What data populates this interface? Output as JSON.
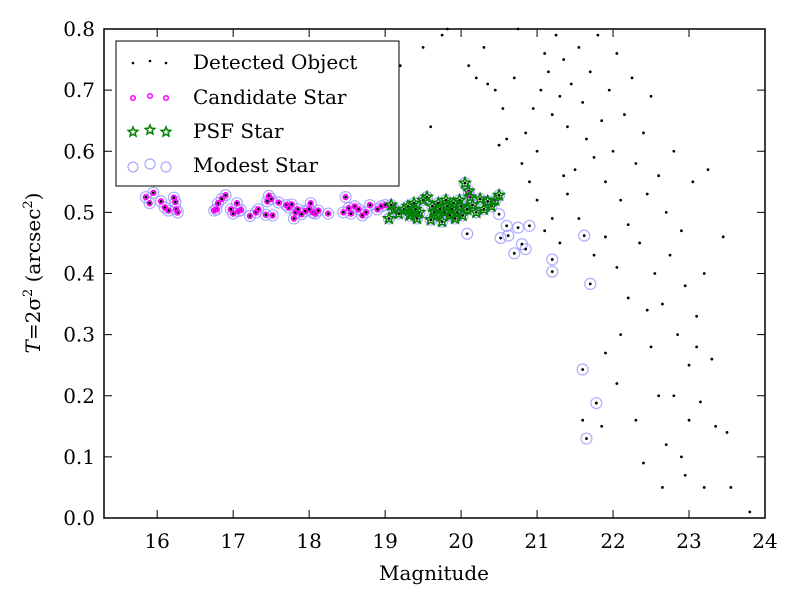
{
  "chart_data": {
    "type": "scatter",
    "title": "",
    "xlabel": "Magnitude",
    "ylabel_parts": {
      "T": "T",
      "eq": "=2σ",
      "sup": "2",
      "unit_open": " (arcsec",
      "unit_sup": "2",
      "unit_close": ")"
    },
    "xlim": [
      15.3,
      24.0
    ],
    "ylim": [
      0.0,
      0.8
    ],
    "xticks": [
      "16",
      "17",
      "18",
      "19",
      "20",
      "21",
      "22",
      "23",
      "24"
    ],
    "xtick_values": [
      16,
      17,
      18,
      19,
      20,
      21,
      22,
      23,
      24
    ],
    "yticks": [
      "0.0",
      "0.1",
      "0.2",
      "0.3",
      "0.4",
      "0.5",
      "0.6",
      "0.7",
      "0.8"
    ],
    "ytick_values": [
      0.0,
      0.1,
      0.2,
      0.3,
      0.4,
      0.5,
      0.6,
      0.7,
      0.8
    ],
    "grid": false,
    "legend_position": "top-left",
    "legend": [
      {
        "name": "Detected Object",
        "marker": "dot",
        "color": "#000000"
      },
      {
        "name": "Candidate Star",
        "marker": "ring-dot",
        "color": "#ff00ff"
      },
      {
        "name": "PSF Star",
        "marker": "star",
        "color": "#008000"
      },
      {
        "name": "Modest Star",
        "marker": "open-circle",
        "color": "#9999ff"
      }
    ],
    "series": [
      {
        "name": "Candidate Star",
        "points": [
          [
            15.85,
            0.525
          ],
          [
            15.95,
            0.532
          ],
          [
            15.9,
            0.515
          ],
          [
            16.05,
            0.518
          ],
          [
            16.1,
            0.508
          ],
          [
            16.15,
            0.503
          ],
          [
            16.22,
            0.524
          ],
          [
            16.24,
            0.517
          ],
          [
            16.25,
            0.505
          ],
          [
            16.27,
            0.5
          ],
          [
            16.75,
            0.503
          ],
          [
            16.78,
            0.505
          ],
          [
            16.8,
            0.515
          ],
          [
            16.85,
            0.522
          ],
          [
            16.9,
            0.528
          ],
          [
            16.97,
            0.505
          ],
          [
            17.0,
            0.498
          ],
          [
            17.05,
            0.515
          ],
          [
            17.07,
            0.502
          ],
          [
            17.1,
            0.504
          ],
          [
            17.22,
            0.494
          ],
          [
            17.3,
            0.5
          ],
          [
            17.33,
            0.505
          ],
          [
            17.43,
            0.496
          ],
          [
            17.45,
            0.518
          ],
          [
            17.47,
            0.527
          ],
          [
            17.5,
            0.522
          ],
          [
            17.52,
            0.495
          ],
          [
            17.6,
            0.516
          ],
          [
            17.7,
            0.512
          ],
          [
            17.73,
            0.508
          ],
          [
            17.77,
            0.513
          ],
          [
            17.8,
            0.49
          ],
          [
            17.82,
            0.5
          ],
          [
            17.85,
            0.505
          ],
          [
            17.9,
            0.497
          ],
          [
            17.95,
            0.502
          ],
          [
            18.0,
            0.505
          ],
          [
            18.02,
            0.515
          ],
          [
            18.05,
            0.5
          ],
          [
            18.08,
            0.498
          ],
          [
            18.12,
            0.503
          ],
          [
            18.25,
            0.498
          ],
          [
            18.45,
            0.5
          ],
          [
            18.48,
            0.525
          ],
          [
            18.52,
            0.507
          ],
          [
            18.55,
            0.498
          ],
          [
            18.6,
            0.51
          ],
          [
            18.65,
            0.505
          ],
          [
            18.7,
            0.495
          ],
          [
            18.75,
            0.5
          ],
          [
            18.8,
            0.512
          ],
          [
            18.9,
            0.505
          ],
          [
            18.95,
            0.51
          ],
          [
            19.0,
            0.512
          ],
          [
            20.1,
            0.53
          ]
        ]
      },
      {
        "name": "PSF Star",
        "points": [
          [
            19.05,
            0.49
          ],
          [
            19.08,
            0.512
          ],
          [
            19.12,
            0.505
          ],
          [
            19.18,
            0.498
          ],
          [
            19.25,
            0.505
          ],
          [
            19.3,
            0.51
          ],
          [
            19.32,
            0.495
          ],
          [
            19.35,
            0.5
          ],
          [
            19.38,
            0.515
          ],
          [
            19.4,
            0.505
          ],
          [
            19.42,
            0.49
          ],
          [
            19.45,
            0.5
          ],
          [
            19.5,
            0.52
          ],
          [
            19.55,
            0.525
          ],
          [
            19.6,
            0.488
          ],
          [
            19.62,
            0.51
          ],
          [
            19.65,
            0.5
          ],
          [
            19.68,
            0.495
          ],
          [
            19.7,
            0.515
          ],
          [
            19.72,
            0.505
          ],
          [
            19.75,
            0.485
          ],
          [
            19.78,
            0.5
          ],
          [
            19.8,
            0.52
          ],
          [
            19.82,
            0.51
          ],
          [
            19.85,
            0.495
          ],
          [
            19.88,
            0.505
          ],
          [
            19.9,
            0.515
          ],
          [
            19.92,
            0.49
          ],
          [
            19.95,
            0.5
          ],
          [
            19.98,
            0.52
          ],
          [
            20.0,
            0.51
          ],
          [
            20.02,
            0.495
          ],
          [
            20.05,
            0.548
          ],
          [
            20.08,
            0.505
          ],
          [
            20.1,
            0.535
          ],
          [
            20.12,
            0.525
          ],
          [
            20.15,
            0.512
          ],
          [
            20.2,
            0.5
          ],
          [
            20.25,
            0.522
          ],
          [
            20.3,
            0.505
          ],
          [
            20.35,
            0.518
          ],
          [
            20.4,
            0.51
          ],
          [
            20.45,
            0.52
          ],
          [
            20.5,
            0.528
          ]
        ]
      },
      {
        "name": "Modest Star",
        "points": [
          [
            20.08,
            0.465
          ],
          [
            20.5,
            0.497
          ],
          [
            20.52,
            0.458
          ],
          [
            20.6,
            0.478
          ],
          [
            20.62,
            0.462
          ],
          [
            20.7,
            0.433
          ],
          [
            20.75,
            0.475
          ],
          [
            20.8,
            0.448
          ],
          [
            20.85,
            0.44
          ],
          [
            20.9,
            0.478
          ],
          [
            21.2,
            0.423
          ],
          [
            21.2,
            0.403
          ],
          [
            21.7,
            0.383
          ],
          [
            21.6,
            0.243
          ],
          [
            21.78,
            0.188
          ],
          [
            21.65,
            0.13
          ],
          [
            21.62,
            0.462
          ]
        ]
      },
      {
        "name": "Detected Object",
        "points": [
          [
            19.2,
            0.74
          ],
          [
            19.5,
            0.77
          ],
          [
            19.6,
            0.64
          ],
          [
            19.75,
            0.79
          ],
          [
            19.82,
            0.8
          ],
          [
            20.1,
            0.74
          ],
          [
            20.2,
            0.72
          ],
          [
            20.3,
            0.77
          ],
          [
            20.35,
            0.71
          ],
          [
            20.45,
            0.7
          ],
          [
            20.5,
            0.61
          ],
          [
            20.55,
            0.67
          ],
          [
            20.6,
            0.62
          ],
          [
            20.7,
            0.72
          ],
          [
            20.75,
            0.8
          ],
          [
            20.8,
            0.58
          ],
          [
            20.85,
            0.63
          ],
          [
            20.9,
            0.55
          ],
          [
            20.95,
            0.67
          ],
          [
            21.0,
            0.6
          ],
          [
            21.05,
            0.7
          ],
          [
            21.1,
            0.76
          ],
          [
            21.15,
            0.73
          ],
          [
            21.2,
            0.66
          ],
          [
            21.25,
            0.79
          ],
          [
            21.3,
            0.69
          ],
          [
            21.35,
            0.75
          ],
          [
            21.4,
            0.64
          ],
          [
            21.45,
            0.71
          ],
          [
            21.5,
            0.57
          ],
          [
            21.55,
            0.77
          ],
          [
            21.6,
            0.68
          ],
          [
            21.65,
            0.62
          ],
          [
            21.7,
            0.73
          ],
          [
            21.75,
            0.59
          ],
          [
            21.8,
            0.79
          ],
          [
            21.85,
            0.65
          ],
          [
            21.9,
            0.55
          ],
          [
            21.95,
            0.7
          ],
          [
            22.0,
            0.6
          ],
          [
            22.05,
            0.76
          ],
          [
            22.1,
            0.52
          ],
          [
            22.15,
            0.66
          ],
          [
            22.2,
            0.48
          ],
          [
            22.25,
            0.72
          ],
          [
            22.3,
            0.58
          ],
          [
            22.35,
            0.45
          ],
          [
            22.4,
            0.63
          ],
          [
            22.45,
            0.53
          ],
          [
            22.5,
            0.69
          ],
          [
            22.55,
            0.4
          ],
          [
            22.6,
            0.56
          ],
          [
            22.65,
            0.35
          ],
          [
            22.7,
            0.5
          ],
          [
            22.75,
            0.43
          ],
          [
            22.8,
            0.6
          ],
          [
            22.85,
            0.3
          ],
          [
            22.9,
            0.47
          ],
          [
            22.95,
            0.38
          ],
          [
            23.0,
            0.25
          ],
          [
            23.05,
            0.55
          ],
          [
            23.1,
            0.33
          ],
          [
            23.15,
            0.19
          ],
          [
            23.2,
            0.4
          ],
          [
            23.25,
            0.57
          ],
          [
            23.3,
            0.26
          ],
          [
            23.35,
            0.15
          ],
          [
            23.45,
            0.46
          ],
          [
            23.5,
            0.14
          ],
          [
            23.55,
            0.05
          ],
          [
            23.8,
            0.01
          ],
          [
            22.95,
            0.07
          ],
          [
            22.7,
            0.12
          ],
          [
            22.6,
            0.2
          ],
          [
            22.4,
            0.09
          ],
          [
            22.3,
            0.16
          ],
          [
            22.5,
            0.28
          ],
          [
            22.9,
            0.1
          ],
          [
            23.2,
            0.05
          ],
          [
            22.65,
            0.05
          ],
          [
            21.2,
            0.49
          ],
          [
            21.4,
            0.53
          ],
          [
            21.0,
            0.52
          ],
          [
            21.3,
            0.45
          ],
          [
            21.55,
            0.49
          ],
          [
            21.75,
            0.43
          ],
          [
            21.9,
            0.46
          ],
          [
            22.05,
            0.41
          ],
          [
            21.35,
            0.56
          ],
          [
            21.1,
            0.47
          ],
          [
            21.9,
            0.27
          ],
          [
            21.85,
            0.15
          ],
          [
            22.05,
            0.22
          ],
          [
            21.6,
            0.16
          ],
          [
            22.2,
            0.36
          ],
          [
            22.1,
            0.3
          ],
          [
            22.45,
            0.34
          ],
          [
            22.8,
            0.2
          ],
          [
            23.0,
            0.16
          ],
          [
            23.1,
            0.28
          ]
        ]
      }
    ]
  }
}
